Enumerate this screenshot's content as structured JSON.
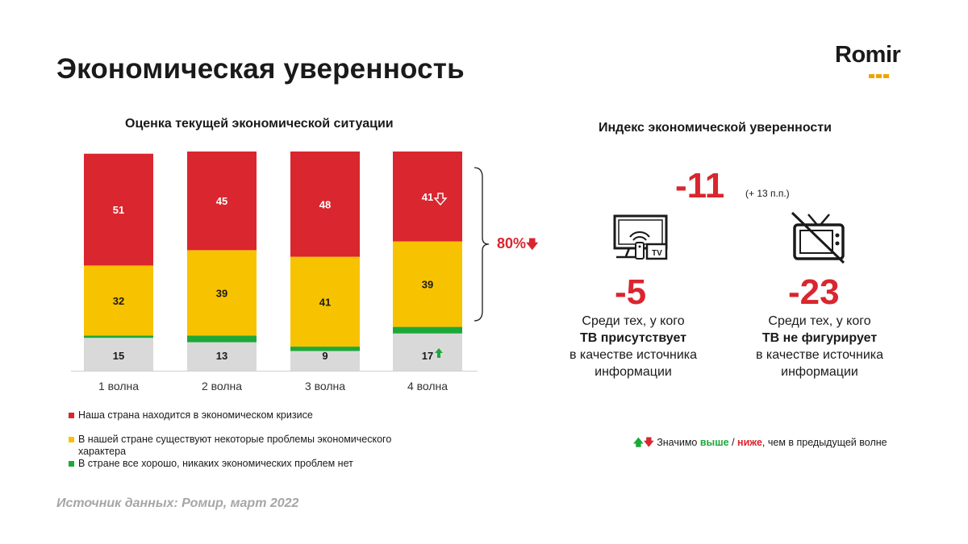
{
  "page": {
    "title": "Экономическая уверенность",
    "logo_text": "Romir",
    "source": "Источник данных: Ромир, март 2022"
  },
  "chart_data": {
    "type": "bar",
    "stacked": true,
    "title": "Оценка текущей экономической ситуации",
    "categories": [
      "1 волна",
      "2 волна",
      "3 волна",
      "4 волна"
    ],
    "series": [
      {
        "name": "",
        "values": [
          15,
          13,
          9,
          17
        ],
        "color": "#d9d9d9"
      },
      {
        "name": "В стране все хорошо, никаких экономических проблем нет",
        "values": [
          1,
          3,
          2,
          3
        ],
        "color": "#1ea83a"
      },
      {
        "name": "В нашей стране существуют некоторые проблемы экономического характера",
        "values": [
          32,
          39,
          41,
          39
        ],
        "color": "#f7c200"
      },
      {
        "name": "Наша страна находится в экономическом кризисе",
        "values": [
          51,
          45,
          48,
          41
        ],
        "color": "#d9262f"
      }
    ],
    "markers": [
      {
        "category": "4 волна",
        "series": "Наша страна находится в экономическом кризисе",
        "direction": "down"
      },
      {
        "category": "4 волна",
        "series": "",
        "direction": "up"
      }
    ],
    "bracket_label": "80%",
    "legend_position": "bottom-left"
  },
  "legend": {
    "items": [
      {
        "label": "Наша страна находится в экономическом кризисе",
        "color": "#d9262f"
      },
      {
        "label": "В нашей стране существуют некоторые проблемы экономического характера",
        "color": "#f7c200"
      },
      {
        "label": "В стране все хорошо,  никаких экономических проблем нет",
        "color": "#1ea83a"
      }
    ]
  },
  "index": {
    "title": "Индекс экономической уверенности",
    "value": "-11",
    "delta": "(+ 13 п.п.)",
    "tv_present": {
      "value": "-5",
      "line1": "Среди тех, у кого",
      "line2": "ТВ присутствует",
      "line3": "в качестве источника",
      "line4": "информации",
      "icon": "tv-with-devices-icon"
    },
    "tv_absent": {
      "value": "-23",
      "line1": "Среди тех, у кого",
      "line2": "ТВ не фигурирует",
      "line3": "в качестве источника",
      "line4": "информации",
      "icon": "crossed-out-tv-icon"
    }
  },
  "note": {
    "prefix": "Значимо",
    "higher": "выше",
    "slash": " / ",
    "lower": "ниже",
    "suffix": ", чем в предыдущей волне"
  }
}
